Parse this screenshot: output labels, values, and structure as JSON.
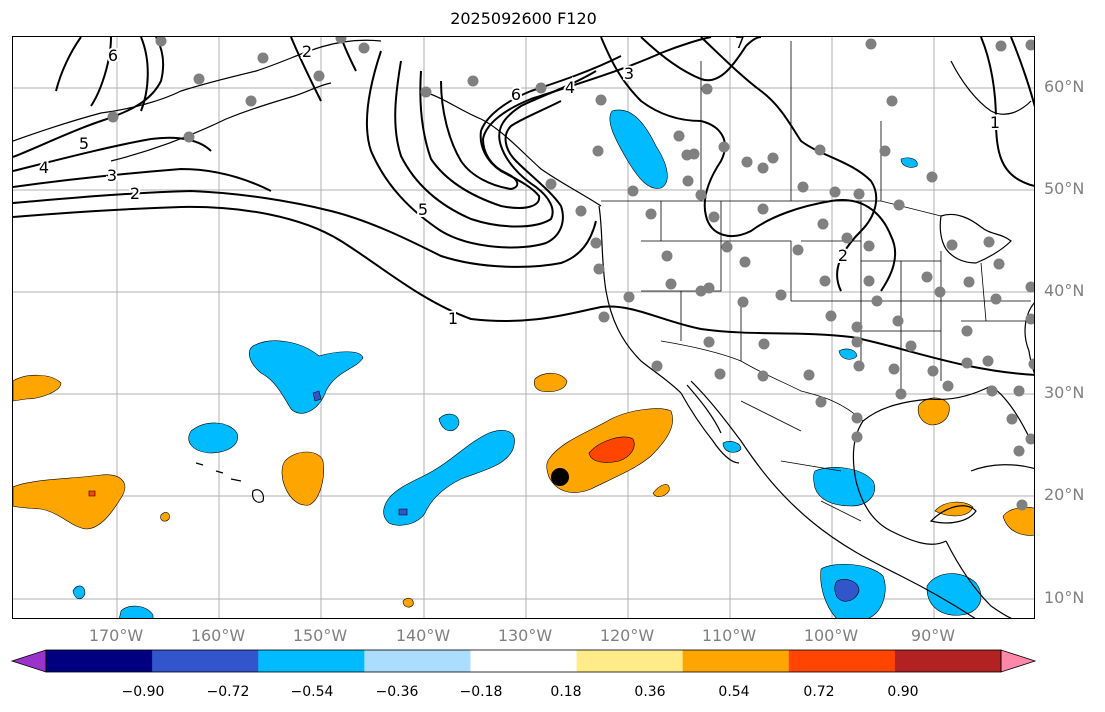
{
  "title": "2025092600 F120",
  "lat_labels": [
    "60°N",
    "50°N",
    "40°N",
    "30°N",
    "20°N",
    "10°N"
  ],
  "lon_labels": [
    "170°W",
    "160°W",
    "150°W",
    "140°W",
    "130°W",
    "120°W",
    "110°W",
    "100°W",
    "90°W"
  ],
  "colorbar": {
    "ticks": [
      "−0.90",
      "−0.72",
      "−0.54",
      "−0.36",
      "−0.18",
      "0.18",
      "0.36",
      "0.54",
      "0.72",
      "0.90"
    ],
    "colors": [
      "#9933cc",
      "#000080",
      "#3355cc",
      "#00bbff",
      "#aaddff",
      "#ffffff",
      "#ffeb88",
      "#ffa500",
      "#ff4500",
      "#b22222",
      "#ff88aa"
    ]
  },
  "contour_labels": [
    "5",
    "4",
    "3",
    "2",
    "2",
    "1",
    "6",
    "4",
    "3",
    "5",
    "1",
    "2",
    "7",
    "6"
  ],
  "colors": {
    "land": "#ffffff",
    "coast": "#000000",
    "station": "#808080",
    "grid": "#b0b0b0",
    "contour": "#000000"
  }
}
